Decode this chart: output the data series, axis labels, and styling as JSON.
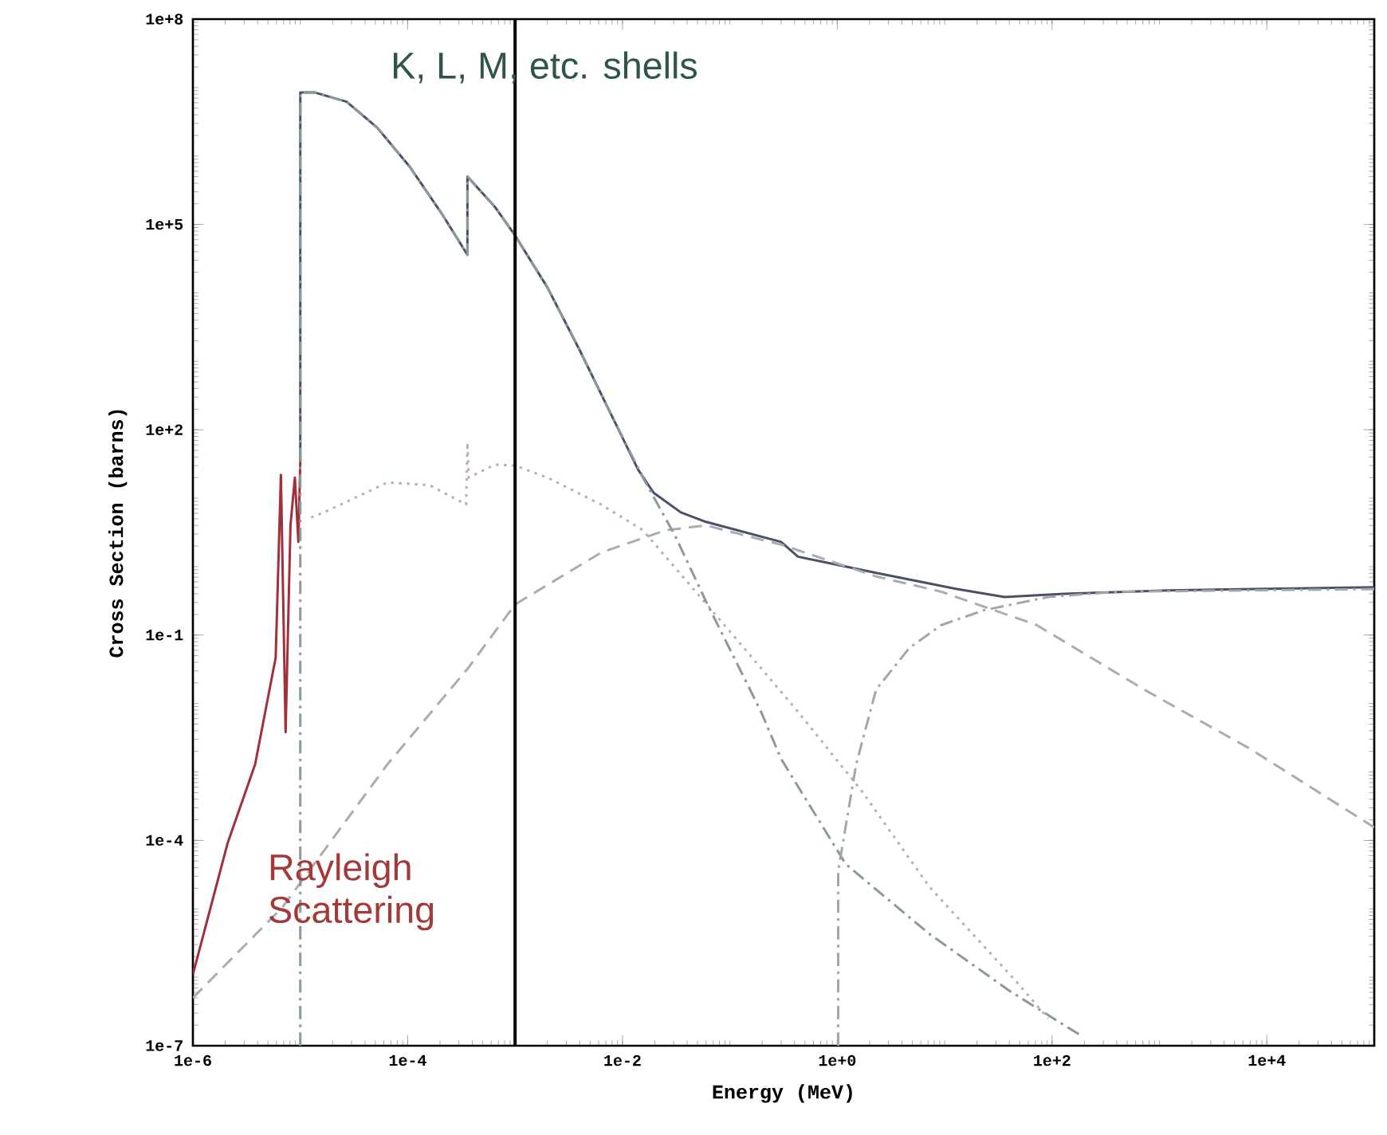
{
  "chart_data": {
    "type": "line",
    "xlabel": "Energy (MeV)",
    "ylabel": "Cross Section (barns)",
    "log": "xy",
    "marker": "none",
    "xlim": [
      1e-06,
      100000.0
    ],
    "ylim": [
      1e-07,
      100000000.0
    ],
    "xticks": [
      {
        "value": 1e-06,
        "label": "1e-6"
      },
      {
        "value": 0.0001,
        "label": "1e-4"
      },
      {
        "value": 0.01,
        "label": "1e-2"
      },
      {
        "value": 1,
        "label": "1e+0"
      },
      {
        "value": 100,
        "label": "1e+2"
      },
      {
        "value": 10000.0,
        "label": "1e+4"
      }
    ],
    "yticks": [
      {
        "value": 1e-07,
        "label": "1e-7"
      },
      {
        "value": 0.0001,
        "label": "1e-4"
      },
      {
        "value": 0.1,
        "label": "1e-1"
      },
      {
        "value": 100,
        "label": "1e+2"
      },
      {
        "value": 100000.0,
        "label": "1e+5"
      },
      {
        "value": 100000000.0,
        "label": "1e+8"
      }
    ],
    "series": [
      {
        "color": "#a0303a",
        "line_style": "solid",
        "x": [
          1e-06,
          2.1e-06,
          3.8e-06,
          5.9e-06,
          6.6e-06,
          7.3e-06,
          8.1e-06,
          8.9e-06,
          9.6e-06,
          1e-05
        ],
        "values": [
          1.1e-06,
          9e-05,
          0.0013,
          0.047,
          22,
          0.0038,
          4,
          20,
          2.3,
          34
        ]
      },
      {
        "color": "#4a4f6a",
        "line_style": "solid",
        "x": [
          1e-05,
          1e-05,
          1.35e-05,
          2.7e-05,
          5.2e-05,
          0.000105,
          0.00021,
          0.00036,
          0.00036,
          0.00065,
          0.001,
          0.002,
          0.004,
          0.0078,
          0.014,
          0.0195,
          0.035,
          0.06,
          0.3,
          0.43,
          2.3,
          13,
          36,
          130,
          1200,
          100000.0
        ],
        "values": [
          34,
          8500000.0,
          8500000.0,
          6200000.0,
          2600000.0,
          690000.0,
          140000.0,
          36000.0,
          500000.0,
          180000.0,
          69000.0,
          12000.0,
          1450,
          170,
          26,
          12,
          6.2,
          4.5,
          2.3,
          1.4,
          0.81,
          0.47,
          0.36,
          0.4,
          0.45,
          0.5
        ]
      },
      {
        "color": "#c4a8b2",
        "line_style": "dotted",
        "x": [
          1.26e-05,
          1.66e-05,
          6.5e-05,
          0.00016,
          0.00035,
          0.00036,
          0.00037,
          0.00065,
          0.001,
          0.002,
          0.0063,
          0.0155,
          0.11,
          0.43,
          1.7,
          7.2,
          47,
          92
        ],
        "values": [
          5.2,
          6.2,
          17,
          15.5,
          8.1,
          65,
          20,
          31,
          30,
          20,
          8.1,
          3.4,
          0.095,
          0.0076,
          0.00052,
          2.1e-05,
          8.5e-07,
          2.5e-07
        ]
      },
      {
        "color": "#a8acb4",
        "line_style": "dashed",
        "x": [
          1e-06,
          6.8e-06,
          6.5e-05,
          0.00036,
          0.001,
          0.0063,
          0.025,
          0.06,
          0.3,
          2.3,
          9.3,
          72,
          720,
          6900,
          100000.0
        ],
        "values": [
          5e-07,
          1.05e-05,
          0.0013,
          0.032,
          0.28,
          1.6,
          3.4,
          4,
          2.1,
          0.72,
          0.43,
          0.14,
          0.016,
          0.0022,
          0.000155
        ]
      },
      {
        "color": "#8a9a96",
        "line_style": "dashdot",
        "x": [
          1e-05,
          1e-05,
          1.35e-05,
          2.7e-05,
          5.2e-05,
          0.000105,
          0.00021,
          0.00036,
          0.00036,
          0.00065,
          0.001,
          0.002,
          0.004,
          0.0078,
          0.0155,
          0.031,
          0.06,
          0.195,
          0.3,
          1.2,
          7.2,
          41,
          180
        ],
        "values": [
          1e-07,
          8500000.0,
          8500000.0,
          6200000.0,
          2600000.0,
          690000.0,
          140000.0,
          36000.0,
          500000.0,
          180000.0,
          69000.0,
          12000.0,
          1450,
          170,
          20,
          2.8,
          0.31,
          0.0076,
          0.00155,
          4.5e-05,
          4.3e-06,
          6.2e-07,
          1.45e-07
        ]
      },
      {
        "color": "#a0a8a8",
        "line_style": "dashdot",
        "x": [
          1.02,
          1.02,
          1.5,
          2.3,
          4.7,
          9.3,
          23,
          92,
          400,
          100000.0
        ],
        "values": [
          1e-07,
          3.6e-05,
          0.0013,
          0.016,
          0.065,
          0.14,
          0.23,
          0.36,
          0.43,
          0.47
        ]
      }
    ],
    "ref_lines": [
      {
        "axis": "x",
        "value": 0.001,
        "color": "#000000"
      }
    ],
    "annotations": [
      "K, L, M, etc. shells",
      "Rayleigh Scattering"
    ]
  }
}
